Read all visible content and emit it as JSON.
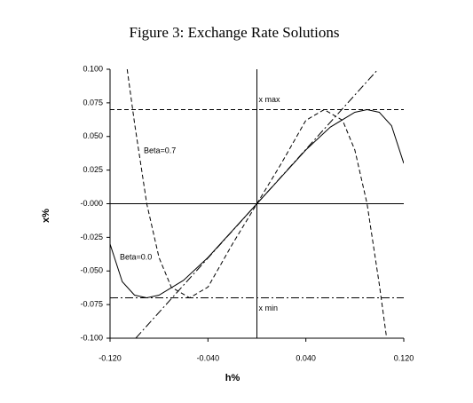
{
  "chart_data": {
    "type": "line",
    "title": "Figure 3: Exchange Rate Solutions",
    "xlabel": "h%",
    "ylabel": "x%",
    "xlim": [
      -0.12,
      0.12
    ],
    "ylim": [
      -0.1,
      0.1
    ],
    "xticks": [
      {
        "value": -0.12,
        "label": "-0.120"
      },
      {
        "value": -0.04,
        "label": "-0.040"
      },
      {
        "value": 0.04,
        "label": "0.040"
      },
      {
        "value": 0.12,
        "label": "0.120"
      }
    ],
    "yticks": [
      {
        "value": 0.1,
        "label": "0.100"
      },
      0.075,
      {
        "value": 0.05,
        "label": "0.050"
      },
      0.025,
      {
        "value": 0,
        "label": "-0.000"
      },
      -0.025,
      {
        "value": -0.05,
        "label": "-0.050"
      },
      -0.075,
      {
        "value": -0.1,
        "label": "-0.100"
      }
    ],
    "series": [
      {
        "name": "Beta=0.7",
        "color": "#000000",
        "dash": "dash",
        "x": [
          -0.106,
          -0.1,
          -0.09,
          -0.08,
          -0.07,
          -0.055,
          -0.04,
          -0.02,
          0,
          0.02,
          0.04,
          0.055,
          0.07,
          0.08,
          0.09,
          0.1,
          0.106
        ],
        "values": [
          0.1,
          0.06,
          0.0,
          -0.04,
          -0.062,
          -0.07,
          -0.062,
          -0.03,
          0,
          0.03,
          0.062,
          0.07,
          0.062,
          0.04,
          0.0,
          -0.06,
          -0.1
        ]
      },
      {
        "name": "Beta=0.0",
        "color": "#000000",
        "dash": "solid",
        "x": [
          -0.12,
          -0.11,
          -0.1,
          -0.09,
          -0.08,
          -0.06,
          -0.04,
          -0.02,
          0,
          0.02,
          0.04,
          0.06,
          0.08,
          0.09,
          0.1,
          0.11,
          0.12
        ],
        "values": [
          -0.03,
          -0.058,
          -0.068,
          -0.07,
          -0.068,
          -0.057,
          -0.04,
          -0.02,
          0,
          0.02,
          0.04,
          0.057,
          0.068,
          0.07,
          0.068,
          0.058,
          0.03
        ]
      },
      {
        "color": "#000000",
        "dash": "dashdot",
        "x": [
          -0.099,
          0.099
        ],
        "values": [
          -0.1,
          0.1
        ]
      }
    ],
    "annotations": [
      {
        "text": "x max",
        "y": 0.07,
        "dash": "dash"
      },
      {
        "text": "x min",
        "y": -0.07,
        "dash": "dashdot"
      }
    ]
  }
}
